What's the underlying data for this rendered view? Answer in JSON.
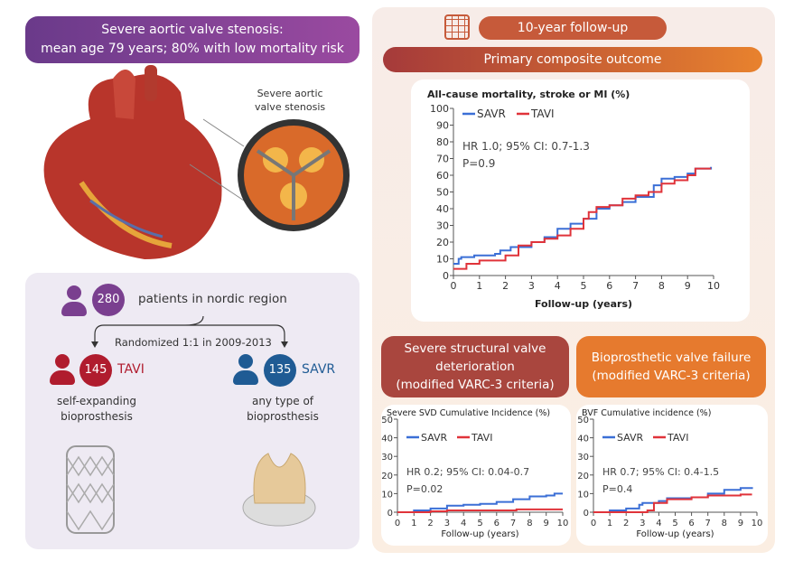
{
  "header": {
    "line1": "Severe aortic valve stenosis:",
    "line2": "mean age 79 years; 80% with low mortality risk"
  },
  "illustration": {
    "callout_line1": "Severe aortic",
    "callout_line2": "valve stenosis"
  },
  "cohort": {
    "total": "280",
    "total_label": "patients in nordic region",
    "randomized": "Randomized 1:1 in 2009-2013",
    "tavi": {
      "count": "145",
      "label": "TAVI",
      "desc1": "self-expanding",
      "desc2": "bioprosthesis"
    },
    "savr": {
      "count": "135",
      "label": "SAVR",
      "desc1": "any type of",
      "desc2": "bioprosthesis"
    }
  },
  "right": {
    "followup": "10-year follow-up",
    "primary": "Primary composite outcome",
    "svd_title": [
      "Severe structural valve",
      "deterioration",
      "(modified VARC-3 criteria)"
    ],
    "bvf_title": [
      "Bioprosthetic valve failure",
      "(modified VARC-3 criteria)"
    ]
  },
  "colors": {
    "purple": "#7a3f8f",
    "red": "#b01c2e",
    "blue": "#1f5b94",
    "orange": "#e8822e",
    "savr_line": "#3b6fd6",
    "tavi_line": "#e0333a"
  },
  "chart_data": [
    {
      "type": "line",
      "title": "All-cause mortality, stroke or MI (%)",
      "xlabel": "Follow-up (years)",
      "xlim": [
        0,
        10
      ],
      "ylim": [
        0,
        100
      ],
      "xticks": [
        "0",
        "1",
        "2",
        "3",
        "4",
        "5",
        "6",
        "7",
        "8",
        "9",
        "10"
      ],
      "yticks": [
        "0",
        "10",
        "20",
        "30",
        "40",
        "50",
        "60",
        "70",
        "80",
        "90",
        "100"
      ],
      "legend": [
        "SAVR",
        "TAVI"
      ],
      "stat1": "HR 1.0; 95% CI: 0.7-1.3",
      "stat2": "P=0.9",
      "series": [
        {
          "name": "SAVR",
          "points": [
            [
              0,
              7
            ],
            [
              0.2,
              10
            ],
            [
              0.3,
              11
            ],
            [
              0.8,
              12
            ],
            [
              1.6,
              13
            ],
            [
              1.8,
              15
            ],
            [
              2.2,
              17
            ],
            [
              3,
              20
            ],
            [
              3.5,
              23
            ],
            [
              4,
              28
            ],
            [
              4.5,
              31
            ],
            [
              5,
              34
            ],
            [
              5.5,
              40
            ],
            [
              6,
              42
            ],
            [
              6.5,
              44
            ],
            [
              7,
              47
            ],
            [
              7.7,
              54
            ],
            [
              8,
              58
            ],
            [
              8.5,
              59
            ],
            [
              9,
              61
            ],
            [
              9.3,
              64
            ],
            [
              9.9,
              65
            ]
          ]
        },
        {
          "name": "TAVI",
          "points": [
            [
              0,
              4
            ],
            [
              0.5,
              7
            ],
            [
              1,
              9
            ],
            [
              1.5,
              9
            ],
            [
              2,
              12
            ],
            [
              2.5,
              18
            ],
            [
              3,
              20
            ],
            [
              3.5,
              22
            ],
            [
              4,
              24
            ],
            [
              4.5,
              28
            ],
            [
              5,
              34
            ],
            [
              5.2,
              38
            ],
            [
              5.5,
              41
            ],
            [
              6,
              42
            ],
            [
              6.5,
              46
            ],
            [
              7,
              48
            ],
            [
              7.5,
              50
            ],
            [
              8,
              55
            ],
            [
              8.5,
              57
            ],
            [
              9,
              60
            ],
            [
              9.3,
              64
            ],
            [
              9.9,
              64
            ]
          ]
        }
      ]
    },
    {
      "type": "line",
      "title": "Severe SVD Cumulative Incidence (%)",
      "xlabel": "Follow-up (years)",
      "xlim": [
        0,
        10
      ],
      "ylim": [
        0,
        50
      ],
      "xticks": [
        "0",
        "1",
        "2",
        "3",
        "4",
        "5",
        "6",
        "7",
        "8",
        "9",
        "10"
      ],
      "yticks": [
        "0",
        "10",
        "20",
        "30",
        "40",
        "50"
      ],
      "legend": [
        "SAVR",
        "TAVI"
      ],
      "stat1": "HR 0.2; 95% CI: 0.04-0.7",
      "stat2": "P=0.02",
      "series": [
        {
          "name": "SAVR",
          "points": [
            [
              0,
              0
            ],
            [
              1,
              1
            ],
            [
              2,
              2
            ],
            [
              3,
              3.5
            ],
            [
              4,
              4
            ],
            [
              5,
              4.5
            ],
            [
              6,
              5.5
            ],
            [
              7,
              7
            ],
            [
              8,
              8.5
            ],
            [
              9,
              9
            ],
            [
              9.5,
              10
            ],
            [
              10,
              10
            ]
          ]
        },
        {
          "name": "TAVI",
          "points": [
            [
              0,
              0
            ],
            [
              2,
              0.5
            ],
            [
              3,
              1
            ],
            [
              7,
              1
            ],
            [
              7.2,
              1.5
            ],
            [
              10,
              1.5
            ]
          ]
        }
      ]
    },
    {
      "type": "line",
      "title": "BVF Cumulative incidence (%)",
      "xlabel": "Follow-up (years)",
      "xlim": [
        0,
        10
      ],
      "ylim": [
        0,
        50
      ],
      "xticks": [
        "0",
        "1",
        "2",
        "3",
        "4",
        "5",
        "6",
        "7",
        "8",
        "9",
        "10"
      ],
      "yticks": [
        "0",
        "10",
        "20",
        "30",
        "40",
        "50"
      ],
      "legend": [
        "SAVR",
        "TAVI"
      ],
      "stat1": "HR 0.7; 95% CI: 0.4-1.5",
      "stat2": "P=0.4",
      "series": [
        {
          "name": "SAVR",
          "points": [
            [
              0,
              0
            ],
            [
              1,
              1
            ],
            [
              2,
              2
            ],
            [
              2.8,
              4
            ],
            [
              3,
              5
            ],
            [
              4,
              6
            ],
            [
              4.5,
              7.5
            ],
            [
              6,
              8
            ],
            [
              7,
              10
            ],
            [
              8,
              12
            ],
            [
              9,
              13
            ],
            [
              9.7,
              13.5
            ]
          ]
        },
        {
          "name": "TAVI",
          "points": [
            [
              0,
              0
            ],
            [
              2,
              0
            ],
            [
              3.3,
              1
            ],
            [
              3.7,
              5
            ],
            [
              4.5,
              7
            ],
            [
              6,
              8
            ],
            [
              7,
              9
            ],
            [
              9,
              9.5
            ],
            [
              9.7,
              9.5
            ]
          ]
        }
      ]
    }
  ]
}
